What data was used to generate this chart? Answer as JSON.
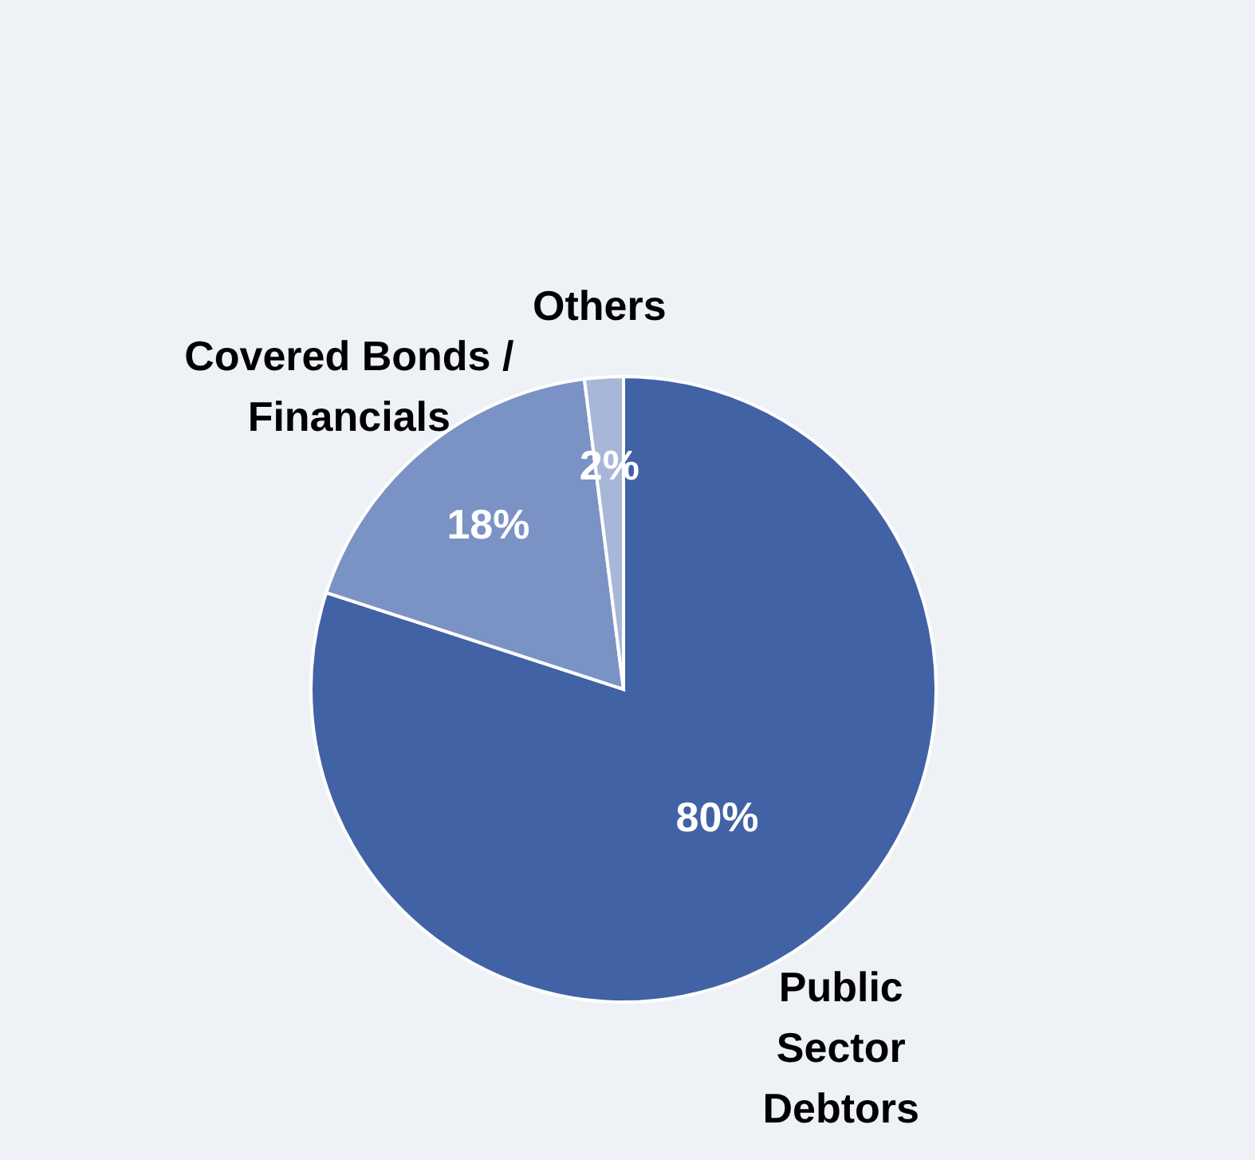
{
  "chart_data": {
    "type": "pie",
    "categories": [
      "Public Sector Debtors",
      "Covered Bonds / Financials",
      "Others"
    ],
    "values": [
      80,
      18,
      2
    ],
    "colors": [
      "#4262a6",
      "#7b93c4",
      "#a8b7d8"
    ],
    "value_labels": [
      "80%",
      "18%",
      "2%"
    ]
  }
}
